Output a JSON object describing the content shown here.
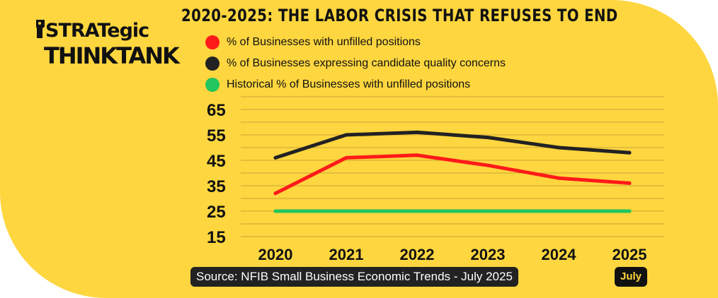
{
  "brand": {
    "line1": "STRATegic",
    "line2": "THINKTANK"
  },
  "footer": {
    "source": "Source: NFIB Small Business Economic Trends - July 2025",
    "badge": "July"
  },
  "colors": {
    "background": "#fed63f",
    "unfilled": "#ff1a1a",
    "quality": "#222222",
    "historical": "#22c55e",
    "grid": "#c9a43a"
  },
  "chart_data": {
    "type": "line",
    "title": "2020-2025: THE LABOR CRISIS THAT REFUSES TO END",
    "x": [
      "2020",
      "2021",
      "2022",
      "2023",
      "2024",
      "2025"
    ],
    "ylim": [
      15,
      65
    ],
    "yticks": [
      65,
      55,
      45,
      35,
      25,
      15
    ],
    "grid": "horizontal",
    "legend_position": "top",
    "series": [
      {
        "name": "% of Businesses with unfilled positions",
        "color": "#ff1a1a",
        "values": [
          32,
          46,
          47,
          43,
          38,
          36
        ]
      },
      {
        "name": "% of Businesses expressing candidate quality concerns",
        "color": "#222222",
        "values": [
          46,
          55,
          56,
          54,
          50,
          48
        ]
      },
      {
        "name": "Historical % of Businesses with unfilled positions",
        "color": "#22c55e",
        "values": [
          25,
          25,
          25,
          25,
          25,
          25
        ]
      }
    ]
  }
}
